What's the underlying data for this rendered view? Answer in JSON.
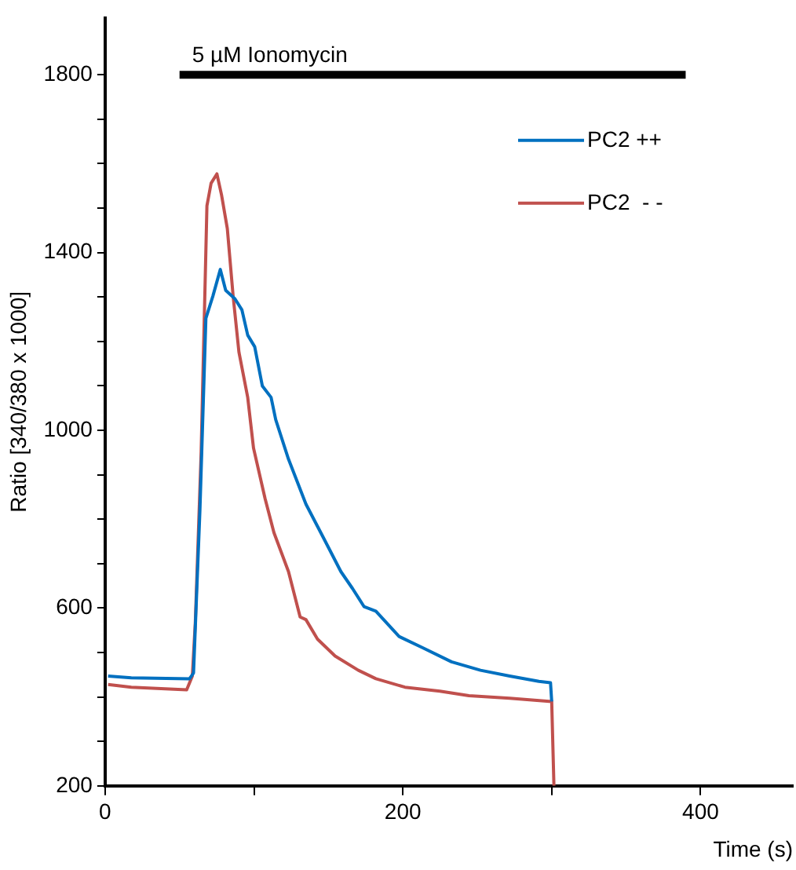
{
  "chart_data": {
    "type": "line",
    "xlabel": "Time (s)",
    "ylabel": "Ratio [340/380 x 1000]",
    "xlim": [
      0,
      462
    ],
    "xticks": [
      0,
      {
        "value": 100,
        "label": null
      },
      200,
      {
        "value": 300,
        "label": null
      },
      400
    ],
    "ylim": [
      200,
      1928
    ],
    "yticks": [
      200,
      {
        "value": 300,
        "label": null
      },
      {
        "value": 400,
        "label": null
      },
      {
        "value": 500,
        "label": null
      },
      600,
      {
        "value": 700,
        "label": null
      },
      {
        "value": 800,
        "label": null
      },
      {
        "value": 900,
        "label": null
      },
      1000,
      {
        "value": 1100,
        "label": null
      },
      {
        "value": 1200,
        "label": null
      },
      {
        "value": 1300,
        "label": null
      },
      1400,
      {
        "value": 1500,
        "label": null
      },
      {
        "value": 1600,
        "label": null
      },
      {
        "value": 1700,
        "label": null
      },
      1800
    ],
    "grid": false,
    "legend": "top right",
    "marker": "none",
    "line_style": "solid",
    "annotations": [
      {
        "text": "5 µM Ionomycin",
        "x": 50,
        "y": 1800
      }
    ],
    "series": [
      {
        "type": "line",
        "color": "#000000",
        "x": [
          50,
          390
        ],
        "values": [
          1800,
          1800
        ]
      },
      {
        "name": "PC2 ++",
        "color": "#0070c0",
        "x": [
          2,
          17.6,
          56.7,
          59.4,
          63.7,
          67.7,
          72.4,
          77.4,
          81,
          87.2,
          91.9,
          95.8,
          100.5,
          105.6,
          111.5,
          114.6,
          123.2,
          134.9,
          146.7,
          158.4,
          166.2,
          174,
          181.9,
          197.5,
          213.1,
          232.7,
          252.2,
          271.8,
          291.4,
          299.2,
          300
        ],
        "values": [
          447,
          443,
          441,
          454,
          821,
          1252,
          1302,
          1362,
          1315,
          1296,
          1271,
          1214,
          1188,
          1100,
          1074,
          1024,
          935,
          834,
          758,
          682,
          644,
          603,
          593,
          536,
          511,
          479,
          460,
          447,
          435,
          432,
          390
        ]
      },
      {
        "name": "PC2  - -",
        "color": "#c0504d",
        "x": [
          2,
          17.6,
          54.8,
          58.6,
          60.6,
          64.5,
          68.4,
          71.2,
          75.1,
          78.2,
          82.1,
          86,
          89.9,
          95.8,
          99.7,
          107.5,
          113.4,
          123.2,
          131,
          134.9,
          142.7,
          154.5,
          170.1,
          181.9,
          201.4,
          224.9,
          244.4,
          271.8,
          298.4,
          300,
          301.5
        ],
        "values": [
          428,
          422,
          416,
          447,
          568,
          948,
          1505,
          1556,
          1577,
          1530,
          1454,
          1302,
          1176,
          1074,
          960,
          846,
          770,
          682,
          580,
          574,
          530,
          492,
          460,
          441,
          422,
          413,
          403,
          397,
          390,
          390,
          200
        ]
      }
    ]
  }
}
